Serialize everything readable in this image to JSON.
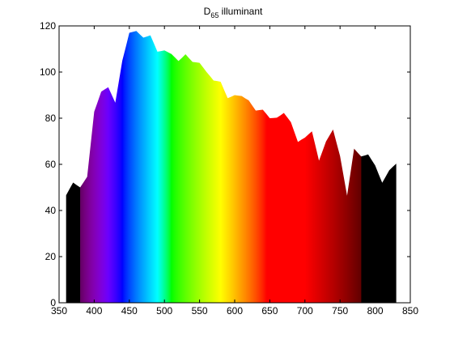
{
  "chart_data": {
    "type": "area",
    "title": {
      "main": "D",
      "subscript": "65",
      "rest": " illuminant"
    },
    "xlabel": "",
    "ylabel": "",
    "xlim": [
      350,
      850
    ],
    "ylim": [
      0,
      120
    ],
    "xticks": [
      350,
      400,
      450,
      500,
      550,
      600,
      650,
      700,
      750,
      800,
      850
    ],
    "yticks": [
      0,
      20,
      40,
      60,
      80,
      100,
      120
    ],
    "grid": false,
    "fill": "wavelength-colored spectrum (black outside visible range)",
    "x": [
      360,
      365,
      370,
      375,
      380,
      385,
      390,
      395,
      400,
      405,
      410,
      415,
      420,
      425,
      430,
      435,
      440,
      445,
      450,
      455,
      460,
      465,
      470,
      475,
      480,
      485,
      490,
      495,
      500,
      505,
      510,
      515,
      520,
      525,
      530,
      535,
      540,
      545,
      550,
      555,
      560,
      565,
      570,
      575,
      580,
      585,
      590,
      595,
      600,
      605,
      610,
      615,
      620,
      625,
      630,
      635,
      640,
      645,
      650,
      655,
      660,
      665,
      670,
      675,
      680,
      685,
      690,
      695,
      700,
      705,
      710,
      715,
      720,
      725,
      730,
      735,
      740,
      745,
      750,
      755,
      760,
      765,
      770,
      775,
      780,
      785,
      790,
      795,
      800,
      805,
      810,
      815,
      820,
      825,
      830
    ],
    "values": [
      46.6,
      49.4,
      52.1,
      51.0,
      50.0,
      52.3,
      54.6,
      68.7,
      82.8,
      87.1,
      91.5,
      92.5,
      93.4,
      90.1,
      86.7,
      95.8,
      104.9,
      110.9,
      117.0,
      117.4,
      117.8,
      116.3,
      114.9,
      115.4,
      115.9,
      112.4,
      108.8,
      109.1,
      109.4,
      108.6,
      107.8,
      106.3,
      104.8,
      106.2,
      107.7,
      106.0,
      104.4,
      104.2,
      104.0,
      102.0,
      100.0,
      98.2,
      96.3,
      96.1,
      95.8,
      92.2,
      88.7,
      89.3,
      90.0,
      89.8,
      89.6,
      88.6,
      87.7,
      85.5,
      83.3,
      83.5,
      83.7,
      81.9,
      80.0,
      80.1,
      80.2,
      81.2,
      82.3,
      80.3,
      78.3,
      74.0,
      69.7,
      70.7,
      71.6,
      73.0,
      74.3,
      68.0,
      61.6,
      65.7,
      69.9,
      72.5,
      75.1,
      69.3,
      63.6,
      55.0,
      46.4,
      56.6,
      66.8,
      65.1,
      63.4,
      63.8,
      64.3,
      61.9,
      59.5,
      55.7,
      52.0,
      54.7,
      57.4,
      58.9,
      60.3
    ]
  }
}
